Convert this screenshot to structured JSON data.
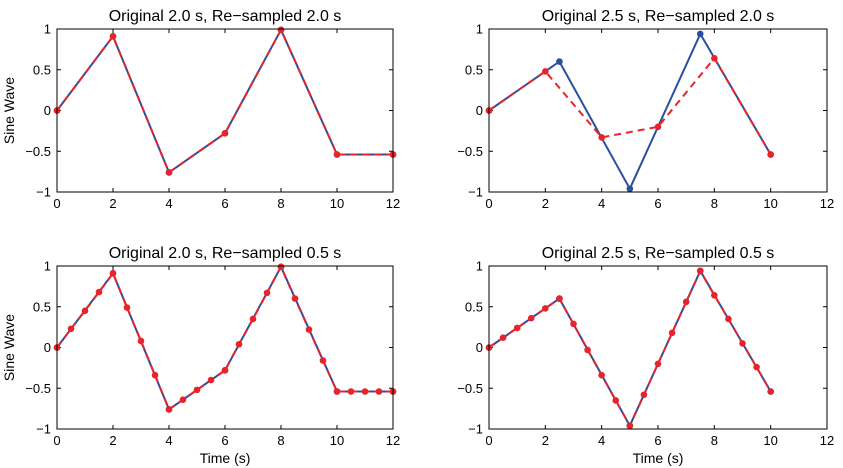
{
  "colors": {
    "original": "#2b4fa0",
    "resampled": "#e8232a"
  },
  "chart_data": [
    {
      "type": "line",
      "title": "Original 2.0 s, Re−sampled 2.0 s",
      "xlabel": "",
      "ylabel": "Sine Wave",
      "xlim": [
        0,
        12
      ],
      "ylim": [
        -1,
        1
      ],
      "xticks": [
        "0",
        "2",
        "4",
        "6",
        "8",
        "10",
        "12"
      ],
      "yticks": [
        "−1",
        "−0.5",
        "0",
        "0.5",
        "1"
      ],
      "series": [
        {
          "name": "original",
          "style": "solid",
          "x": [
            0,
            2,
            4,
            6,
            8,
            10,
            12
          ],
          "y": [
            0,
            0.91,
            -0.76,
            -0.28,
            0.99,
            -0.54,
            -0.54
          ]
        },
        {
          "name": "resampled",
          "style": "dashed",
          "x": [
            0,
            2,
            4,
            6,
            8,
            10,
            12
          ],
          "y": [
            0,
            0.91,
            -0.76,
            -0.28,
            0.99,
            -0.54,
            -0.54
          ]
        }
      ]
    },
    {
      "type": "line",
      "title": "Original 2.5 s, Re−sampled 2.0 s",
      "xlabel": "",
      "ylabel": "",
      "xlim": [
        0,
        12
      ],
      "ylim": [
        -1,
        1
      ],
      "xticks": [
        "0",
        "2",
        "4",
        "6",
        "8",
        "10",
        "12"
      ],
      "yticks": [
        "−1",
        "−0.5",
        "0",
        "0.5",
        "1"
      ],
      "series": [
        {
          "name": "original",
          "style": "solid",
          "x": [
            0,
            2.5,
            5,
            7.5,
            10
          ],
          "y": [
            0,
            0.6,
            -0.96,
            0.94,
            -0.54
          ]
        },
        {
          "name": "resampled",
          "style": "dashed",
          "x": [
            0,
            2,
            4,
            6,
            8,
            10
          ],
          "y": [
            0,
            0.48,
            -0.33,
            -0.2,
            0.64,
            -0.54
          ]
        }
      ]
    },
    {
      "type": "line",
      "title": "Original 2.0 s, Re−sampled 0.5 s",
      "xlabel": "Time (s)",
      "ylabel": "Sine Wave",
      "xlim": [
        0,
        12
      ],
      "ylim": [
        -1,
        1
      ],
      "xticks": [
        "0",
        "2",
        "4",
        "6",
        "8",
        "10",
        "12"
      ],
      "yticks": [
        "−1",
        "−0.5",
        "0",
        "0.5",
        "1"
      ],
      "series": [
        {
          "name": "original",
          "style": "solid",
          "x": [
            0,
            2,
            4,
            6,
            8,
            10,
            12
          ],
          "y": [
            0,
            0.91,
            -0.76,
            -0.28,
            0.99,
            -0.54,
            -0.54
          ]
        },
        {
          "name": "resampled",
          "style": "dashed",
          "x": [
            0,
            0.5,
            1,
            1.5,
            2,
            2.5,
            3,
            3.5,
            4,
            4.5,
            5,
            5.5,
            6,
            6.5,
            7,
            7.5,
            8,
            8.5,
            9,
            9.5,
            10,
            10.5,
            11,
            11.5,
            12
          ],
          "y": [
            0,
            0.23,
            0.45,
            0.68,
            0.91,
            0.49,
            0.08,
            -0.34,
            -0.76,
            -0.64,
            -0.52,
            -0.4,
            -0.28,
            0.04,
            0.35,
            0.67,
            0.99,
            0.6,
            0.22,
            -0.16,
            -0.54,
            -0.54,
            -0.54,
            -0.54,
            -0.54
          ]
        }
      ]
    },
    {
      "type": "line",
      "title": "Original 2.5 s, Re−sampled 0.5 s",
      "xlabel": "Time (s)",
      "ylabel": "",
      "xlim": [
        0,
        12
      ],
      "ylim": [
        -1,
        1
      ],
      "xticks": [
        "0",
        "2",
        "4",
        "6",
        "8",
        "10",
        "12"
      ],
      "yticks": [
        "−1",
        "−0.5",
        "0",
        "0.5",
        "1"
      ],
      "series": [
        {
          "name": "original",
          "style": "solid",
          "x": [
            0,
            2.5,
            5,
            7.5,
            10
          ],
          "y": [
            0,
            0.6,
            -0.96,
            0.94,
            -0.54
          ]
        },
        {
          "name": "resampled",
          "style": "dashed",
          "x": [
            0,
            0.5,
            1,
            1.5,
            2,
            2.5,
            3,
            3.5,
            4,
            4.5,
            5,
            5.5,
            6,
            6.5,
            7,
            7.5,
            8,
            8.5,
            9,
            9.5,
            10
          ],
          "y": [
            0,
            0.12,
            0.24,
            0.36,
            0.48,
            0.6,
            0.29,
            -0.03,
            -0.34,
            -0.65,
            -0.96,
            -0.58,
            -0.2,
            0.18,
            0.56,
            0.94,
            0.64,
            0.35,
            0.05,
            -0.24,
            -0.54
          ]
        }
      ]
    }
  ]
}
